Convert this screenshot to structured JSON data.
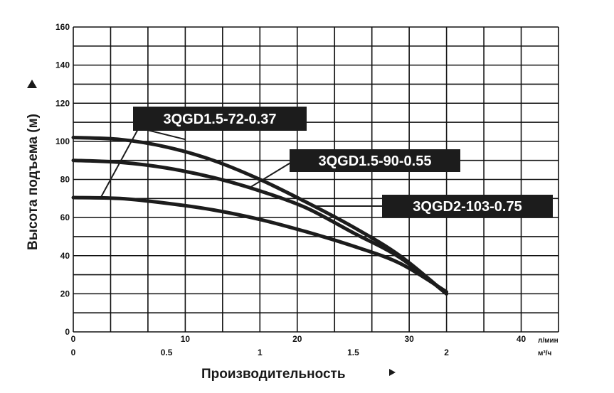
{
  "chart_data": {
    "type": "line",
    "title": "",
    "ylabel": "Высота подъема (м)",
    "xlabel": "Производительность",
    "ylim": [
      0,
      160
    ],
    "xlim": [
      0,
      2.6
    ],
    "y_ticks": [
      "0",
      "20",
      "40",
      "60",
      "80",
      "100",
      "120",
      "140",
      "160"
    ],
    "x_ticks_m3h": [
      "0",
      "0.5",
      "1",
      "1.5",
      "2"
    ],
    "x_ticks_lmin": [
      "0",
      "10",
      "20",
      "30",
      "40"
    ],
    "x_unit_lmin": "л/мин",
    "x_unit_m3h": "м³/ч",
    "grid": true,
    "line_color": "#1c1c1c",
    "label_bg_color": "#1c1c1c",
    "series": [
      {
        "name": "3QGD1.5-72-0.37",
        "x": [
          0,
          0.25,
          0.5,
          0.75,
          1.0,
          1.25,
          1.5,
          1.75,
          2.0
        ],
        "y": [
          70.5,
          70,
          67.5,
          64,
          59,
          52.5,
          45,
          36,
          21
        ]
      },
      {
        "name": "3QGD1.5-90-0.55",
        "x": [
          0,
          0.25,
          0.5,
          0.75,
          1.0,
          1.25,
          1.5,
          1.75,
          2.0
        ],
        "y": [
          90,
          89,
          86,
          81,
          74,
          65,
          52,
          39,
          20
        ]
      },
      {
        "name": "3QGD2-103-0.75",
        "x": [
          0,
          0.25,
          0.5,
          0.75,
          1.0,
          1.25,
          1.5,
          1.75,
          2.0
        ],
        "y": [
          102,
          101,
          97,
          90,
          80,
          68,
          55,
          40,
          20
        ]
      }
    ]
  }
}
